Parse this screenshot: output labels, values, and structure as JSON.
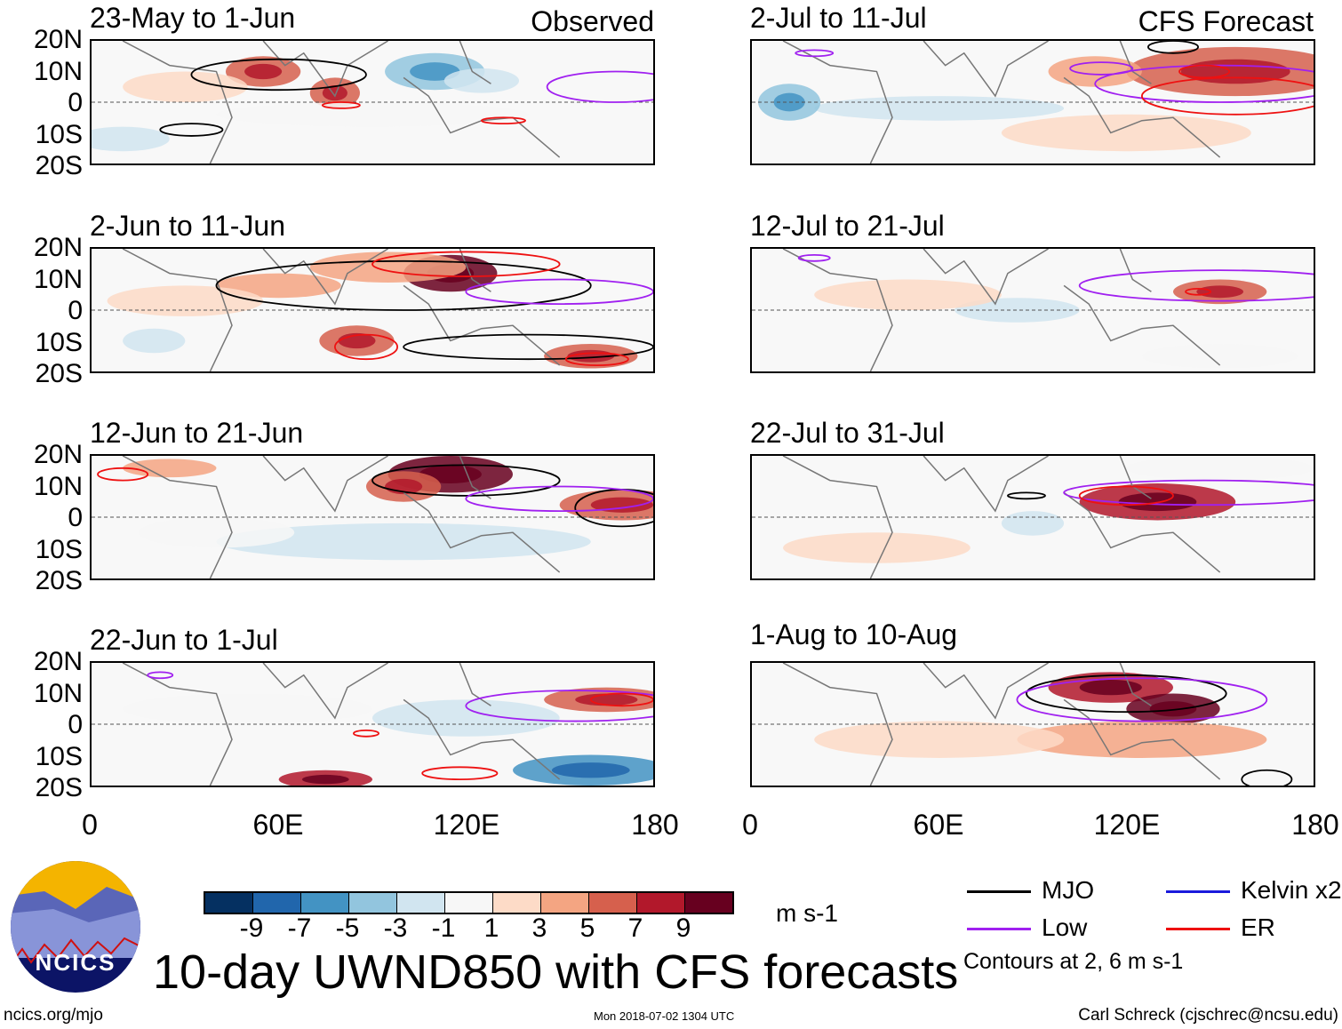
{
  "header": {
    "left_label": "Observed",
    "right_label": "CFS Forecast"
  },
  "axes": {
    "y_ticks": [
      "20N",
      "10N",
      "0",
      "10S",
      "20S"
    ],
    "x_ticks": [
      "0",
      "60E",
      "120E",
      "180"
    ]
  },
  "panels": [
    {
      "title": "23-May to 1-Jun",
      "col": 0,
      "row": 0,
      "anoms": [
        [
          55,
          10,
          12,
          5,
          5
        ],
        [
          78,
          3,
          8,
          5,
          5
        ],
        [
          110,
          10,
          16,
          6,
          -5
        ],
        [
          125,
          7,
          12,
          4,
          -3
        ],
        [
          90,
          -4,
          50,
          4,
          -1
        ],
        [
          10,
          -12,
          15,
          4,
          -3
        ],
        [
          30,
          5,
          20,
          5,
          1
        ]
      ],
      "contours": [
        [
          "mjo",
          60,
          9,
          28,
          5
        ],
        [
          "mjo",
          32,
          -9,
          10,
          2
        ],
        [
          "low",
          168,
          5,
          22,
          5
        ],
        [
          "er",
          80,
          -1,
          6,
          1
        ],
        [
          "er",
          132,
          -6,
          7,
          1
        ]
      ]
    },
    {
      "title": "2-Jun to 11-Jun",
      "col": 0,
      "row": 1,
      "anoms": [
        [
          115,
          12,
          15,
          6,
          9
        ],
        [
          95,
          14,
          25,
          5,
          3
        ],
        [
          85,
          -10,
          12,
          5,
          5
        ],
        [
          160,
          -15,
          15,
          4,
          5
        ],
        [
          60,
          8,
          20,
          4,
          3
        ],
        [
          20,
          -10,
          10,
          4,
          -3
        ],
        [
          30,
          3,
          25,
          5,
          1
        ]
      ],
      "contours": [
        [
          "mjo",
          100,
          8,
          60,
          8
        ],
        [
          "mjo",
          140,
          -12,
          40,
          4
        ],
        [
          "er",
          120,
          15,
          30,
          4
        ],
        [
          "low",
          150,
          6,
          30,
          4
        ],
        [
          "er",
          88,
          -12,
          10,
          4
        ],
        [
          "er",
          162,
          -16,
          10,
          2
        ]
      ]
    },
    {
      "title": "12-Jun to 21-Jun",
      "col": 0,
      "row": 2,
      "anoms": [
        [
          115,
          14,
          20,
          6,
          9
        ],
        [
          100,
          10,
          12,
          5,
          5
        ],
        [
          170,
          4,
          20,
          5,
          5
        ],
        [
          25,
          16,
          15,
          3,
          3
        ],
        [
          100,
          -8,
          60,
          6,
          -3
        ],
        [
          40,
          -5,
          25,
          5,
          -1
        ]
      ],
      "contours": [
        [
          "mjo",
          120,
          12,
          30,
          5
        ],
        [
          "mjo",
          170,
          3,
          15,
          6
        ],
        [
          "low",
          150,
          6,
          30,
          4
        ],
        [
          "er",
          10,
          14,
          8,
          2
        ]
      ]
    },
    {
      "title": "22-Jun to 1-Jul",
      "col": 0,
      "row": 3,
      "anoms": [
        [
          75,
          -18,
          15,
          3,
          7
        ],
        [
          165,
          8,
          20,
          4,
          5
        ],
        [
          160,
          -15,
          25,
          5,
          -7
        ],
        [
          120,
          2,
          30,
          6,
          -3
        ],
        [
          50,
          5,
          40,
          5,
          -1
        ]
      ],
      "contours": [
        [
          "low",
          155,
          6,
          35,
          5
        ],
        [
          "er",
          170,
          8,
          10,
          2
        ],
        [
          "er",
          118,
          -16,
          12,
          2
        ],
        [
          "er",
          88,
          -3,
          4,
          1
        ],
        [
          "low",
          22,
          16,
          4,
          1
        ]
      ]
    },
    {
      "title": "2-Jul to 11-Jul",
      "col": 1,
      "row": 0,
      "anoms": [
        [
          155,
          10,
          35,
          8,
          5
        ],
        [
          110,
          10,
          15,
          5,
          3
        ],
        [
          60,
          -2,
          40,
          4,
          -3
        ],
        [
          12,
          0,
          10,
          6,
          -5
        ],
        [
          120,
          -10,
          40,
          6,
          1
        ]
      ],
      "contours": [
        [
          "mjo",
          135,
          18,
          8,
          2
        ],
        [
          "low",
          150,
          6,
          40,
          6
        ],
        [
          "er",
          155,
          2,
          30,
          6
        ],
        [
          "low",
          112,
          11,
          10,
          2
        ],
        [
          "er",
          145,
          10,
          8,
          2
        ],
        [
          "low",
          20,
          16,
          6,
          1
        ]
      ]
    },
    {
      "title": "12-Jul to 21-Jul",
      "col": 1,
      "row": 1,
      "anoms": [
        [
          150,
          6,
          15,
          4,
          5
        ],
        [
          85,
          0,
          20,
          4,
          -3
        ],
        [
          50,
          5,
          30,
          5,
          1
        ],
        [
          150,
          -15,
          25,
          4,
          -1
        ]
      ],
      "contours": [
        [
          "low",
          150,
          8,
          45,
          5
        ],
        [
          "er",
          143,
          6,
          4,
          1
        ],
        [
          "low",
          20,
          17,
          5,
          1
        ]
      ]
    },
    {
      "title": "22-Jul to 31-Jul",
      "col": 1,
      "row": 2,
      "anoms": [
        [
          130,
          5,
          25,
          6,
          7
        ],
        [
          90,
          -2,
          10,
          4,
          -3
        ],
        [
          150,
          16,
          30,
          4,
          -1
        ],
        [
          40,
          -10,
          30,
          5,
          1
        ]
      ],
      "contours": [
        [
          "low",
          145,
          8,
          45,
          4
        ],
        [
          "er",
          120,
          7,
          15,
          3
        ],
        [
          "mjo",
          88,
          7,
          6,
          1
        ]
      ]
    },
    {
      "title": "1-Aug to 10-Aug",
      "col": 1,
      "row": 3,
      "anoms": [
        [
          115,
          12,
          20,
          5,
          7
        ],
        [
          135,
          5,
          15,
          5,
          9
        ],
        [
          125,
          -5,
          40,
          6,
          3
        ],
        [
          60,
          -5,
          40,
          6,
          1
        ]
      ],
      "contours": [
        [
          "mjo",
          120,
          10,
          32,
          6
        ],
        [
          "low",
          125,
          8,
          40,
          7
        ],
        [
          "mjo",
          165,
          -18,
          8,
          3
        ]
      ]
    }
  ],
  "colorbar": {
    "colors": [
      "#053061",
      "#2166ac",
      "#4393c3",
      "#92c5de",
      "#d1e5f0",
      "#f7f7f7",
      "#fddbc7",
      "#f4a582",
      "#d6604d",
      "#b2182b",
      "#67001f"
    ],
    "labels": [
      "-9",
      "-7",
      "-5",
      "-3",
      "-1",
      "1",
      "3",
      "5",
      "7",
      "9"
    ],
    "units": "m s-1"
  },
  "legend": {
    "items": [
      {
        "key": "mjo",
        "label": "MJO",
        "color": "#000000"
      },
      {
        "key": "kelvin",
        "label": "Kelvin x2",
        "color": "#1a1adc"
      },
      {
        "key": "low",
        "label": "Low",
        "color": "#a020f0"
      },
      {
        "key": "er",
        "label": "ER",
        "color": "#ee1111"
      }
    ],
    "note": "Contours at 2, 6 m s-1"
  },
  "footer": {
    "title": "10-day UWND850 with CFS forecasts",
    "logo_text": "NCICS",
    "url": "ncics.org/mjo",
    "timestamp": "Mon 2018-07-02 1304 UTC",
    "credit": "Carl Schreck (cjschrec@ncsu.edu)"
  }
}
